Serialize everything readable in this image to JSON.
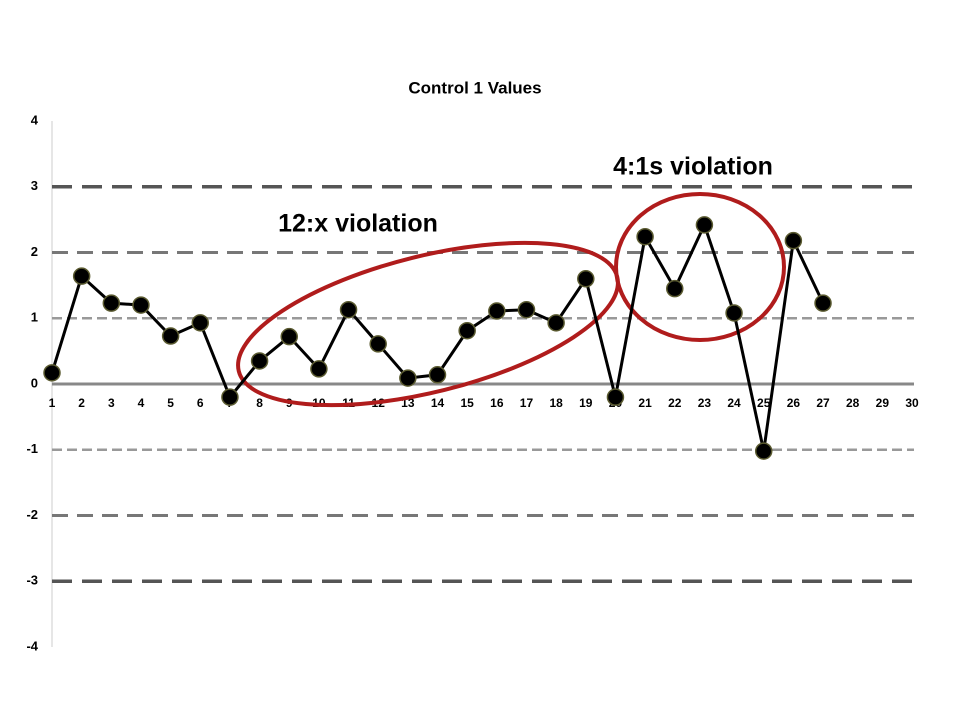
{
  "chart_data": {
    "type": "line",
    "title": "Control 1 Values",
    "categories": [
      1,
      2,
      3,
      4,
      5,
      6,
      7,
      8,
      9,
      10,
      11,
      12,
      13,
      14,
      15,
      16,
      17,
      18,
      19,
      20,
      21,
      22,
      23,
      24,
      25,
      26,
      27,
      28,
      29,
      30
    ],
    "series": [
      {
        "color": "#000000",
        "values": [
          0.17,
          1.64,
          1.23,
          1.2,
          0.73,
          0.93,
          -0.2,
          0.35,
          0.72,
          0.23,
          1.13,
          0.61,
          0.09,
          0.14,
          0.81,
          1.11,
          1.13,
          0.93,
          1.6,
          -0.2,
          2.24,
          1.45,
          2.42,
          1.08,
          -1.02,
          2.18,
          1.23,
          null,
          null,
          null
        ]
      }
    ],
    "ylim": [
      -4,
      4
    ],
    "yticks": [
      -4,
      -3,
      -2,
      -1,
      0,
      1,
      2,
      3,
      4
    ],
    "control_lines": [
      -3,
      -2,
      -1,
      1,
      2,
      3
    ],
    "annotations": [
      "12:x violation",
      "4:1s violation"
    ],
    "annotation_color": "#b01c1c"
  }
}
